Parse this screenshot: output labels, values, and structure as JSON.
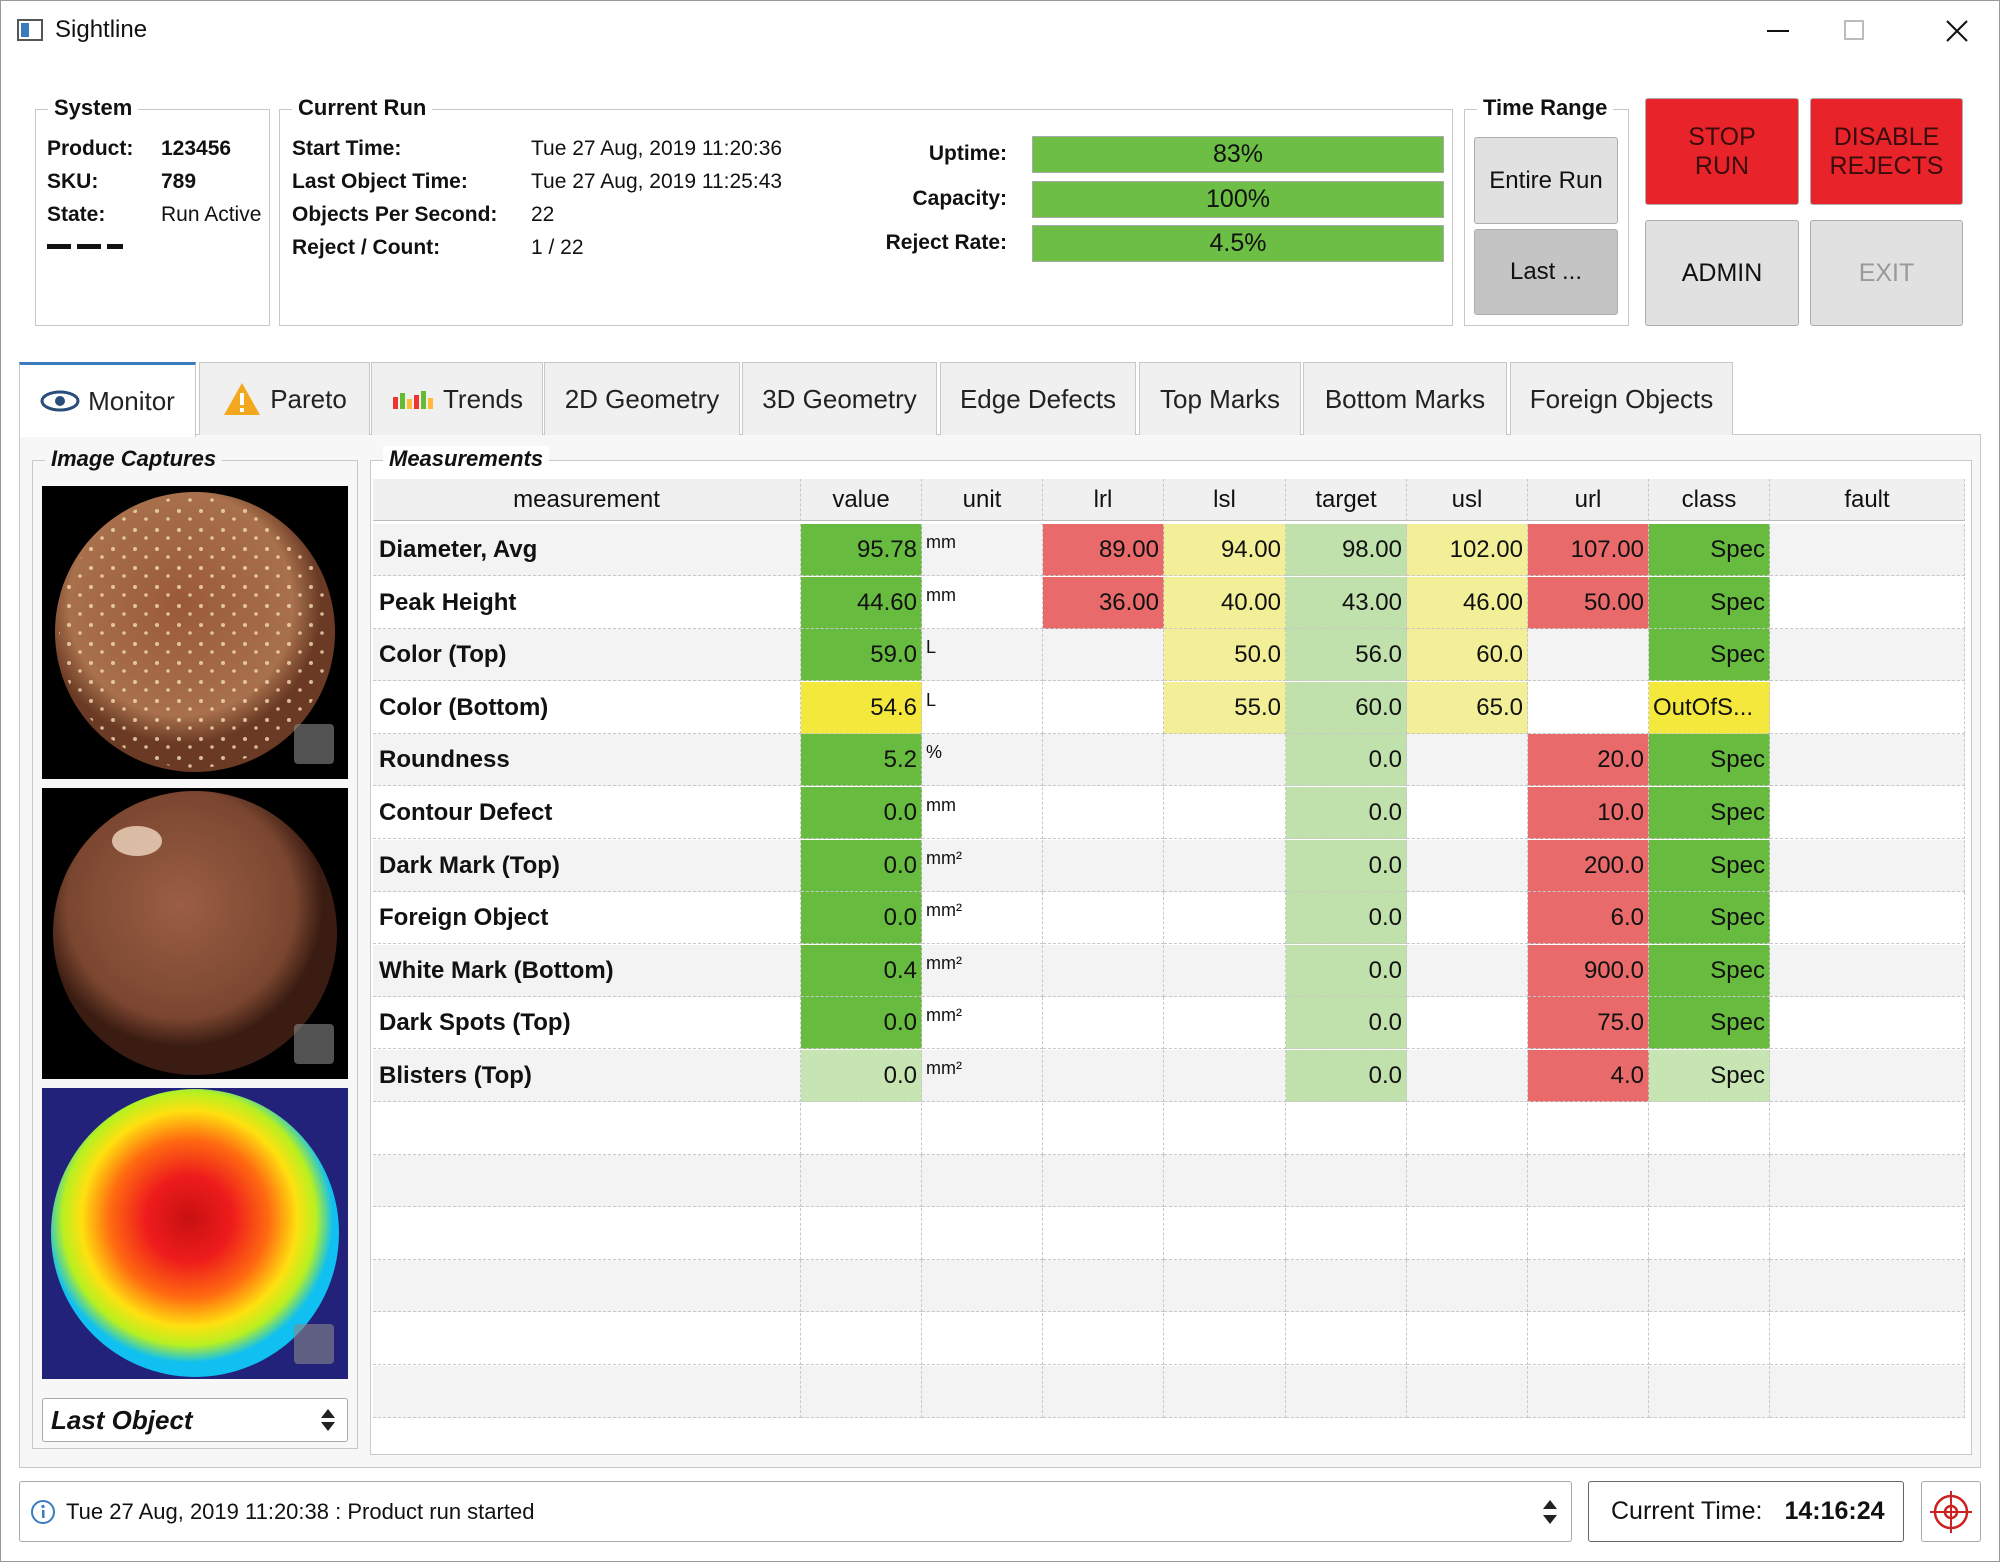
{
  "window": {
    "title": "Sightline"
  },
  "system": {
    "title": "System",
    "fields": [
      {
        "label": "Product:",
        "value": "123456"
      },
      {
        "label": "SKU:",
        "value": "789"
      },
      {
        "label": "State:",
        "value": "Run Active"
      }
    ]
  },
  "current_run": {
    "title": "Current Run",
    "fields": [
      {
        "label": "Start Time:",
        "value": "Tue 27 Aug, 2019 11:20:36"
      },
      {
        "label": "Last Object Time:",
        "value": "Tue 27 Aug, 2019 11:25:43"
      },
      {
        "label": "Objects Per Second:",
        "value": "22"
      },
      {
        "label": "Reject / Count:",
        "value": "1 / 22"
      }
    ],
    "metrics": [
      {
        "label": "Uptime:",
        "value": "83%"
      },
      {
        "label": "Capacity:",
        "value": "100%"
      },
      {
        "label": "Reject Rate:",
        "value": "4.5%"
      }
    ]
  },
  "time_range": {
    "title": "Time Range",
    "buttons": [
      "Entire Run",
      "Last ..."
    ]
  },
  "controls": {
    "buttons": [
      "STOP RUN",
      "DISABLE REJECTS",
      "ADMIN",
      "EXIT"
    ]
  },
  "tabs": [
    "Monitor",
    "Pareto",
    "Trends",
    "2D Geometry",
    "3D Geometry",
    "Edge Defects",
    "Top Marks",
    "Bottom Marks",
    "Foreign Objects"
  ],
  "image_captures": {
    "title": "Image Captures",
    "selector": "Last Object"
  },
  "measurements": {
    "title": "Measurements",
    "columns": [
      "measurement",
      "value",
      "unit",
      "lrl",
      "lsl",
      "target",
      "usl",
      "url",
      "class",
      "fault"
    ],
    "rows": [
      {
        "cells": [
          "Diameter, Avg",
          "95.78",
          "mm",
          "89.00",
          "94.00",
          "98.00",
          "102.00",
          "107.00",
          "Spec",
          null
        ],
        "colors": [
          null,
          "#67bb3f",
          null,
          "#e86a6a",
          "#f3ef98",
          "#c0e1ac",
          "#f3ef98",
          "#e86a6a",
          "#67bb3f",
          null
        ]
      },
      {
        "cells": [
          "Peak Height",
          "44.60",
          "mm",
          "36.00",
          "40.00",
          "43.00",
          "46.00",
          "50.00",
          "Spec",
          null
        ],
        "colors": [
          null,
          "#67bb3f",
          null,
          "#e86a6a",
          "#f3ef98",
          "#c0e1ac",
          "#f3ef98",
          "#e86a6a",
          "#67bb3f",
          null
        ]
      },
      {
        "cells": [
          "Color (Top)",
          "59.0",
          "L",
          null,
          "50.0",
          "56.0",
          "60.0",
          null,
          "Spec",
          null
        ],
        "colors": [
          null,
          "#67bb3f",
          null,
          null,
          "#f3ef98",
          "#c0e1ac",
          "#f3ef98",
          null,
          "#67bb3f",
          null
        ]
      },
      {
        "cells": [
          "Color (Bottom)",
          "54.6",
          "L",
          null,
          "55.0",
          "60.0",
          "65.0",
          null,
          "OutOfS...",
          null
        ],
        "colors": [
          null,
          "#f5e83c",
          null,
          null,
          "#f3ef98",
          "#c0e1ac",
          "#f3ef98",
          null,
          "#f5e83c",
          null
        ]
      },
      {
        "cells": [
          "Roundness",
          "5.2",
          "%",
          null,
          null,
          "0.0",
          null,
          "20.0",
          "Spec",
          null
        ],
        "colors": [
          null,
          "#67bb3f",
          null,
          null,
          null,
          "#c0e1ac",
          null,
          "#e86a6a",
          "#67bb3f",
          null
        ]
      },
      {
        "cells": [
          "Contour Defect",
          "0.0",
          "mm",
          null,
          null,
          "0.0",
          null,
          "10.0",
          "Spec",
          null
        ],
        "colors": [
          null,
          "#67bb3f",
          null,
          null,
          null,
          "#c0e1ac",
          null,
          "#e86a6a",
          "#67bb3f",
          null
        ]
      },
      {
        "cells": [
          "Dark Mark (Top)",
          "0.0",
          "mm²",
          null,
          null,
          "0.0",
          null,
          "200.0",
          "Spec",
          null
        ],
        "colors": [
          null,
          "#67bb3f",
          null,
          null,
          null,
          "#c0e1ac",
          null,
          "#e86a6a",
          "#67bb3f",
          null
        ]
      },
      {
        "cells": [
          "Foreign Object",
          "0.0",
          "mm²",
          null,
          null,
          "0.0",
          null,
          "6.0",
          "Spec",
          null
        ],
        "colors": [
          null,
          "#67bb3f",
          null,
          null,
          null,
          "#c0e1ac",
          null,
          "#e86a6a",
          "#67bb3f",
          null
        ]
      },
      {
        "cells": [
          "White Mark (Bottom)",
          "0.4",
          "mm²",
          null,
          null,
          "0.0",
          null,
          "900.0",
          "Spec",
          null
        ],
        "colors": [
          null,
          "#67bb3f",
          null,
          null,
          null,
          "#c0e1ac",
          null,
          "#e86a6a",
          "#67bb3f",
          null
        ]
      },
      {
        "cells": [
          "Dark Spots (Top)",
          "0.0",
          "mm²",
          null,
          null,
          "0.0",
          null,
          "75.0",
          "Spec",
          null
        ],
        "colors": [
          null,
          "#67bb3f",
          null,
          null,
          null,
          "#c0e1ac",
          null,
          "#e86a6a",
          "#67bb3f",
          null
        ]
      },
      {
        "cells": [
          "Blisters (Top)",
          "0.0",
          "mm²",
          null,
          null,
          "0.0",
          null,
          "4.0",
          "Spec",
          null
        ],
        "colors": [
          null,
          "#c6e5b3",
          null,
          null,
          null,
          "#c0e1ac",
          null,
          "#e86a6a",
          "#c6e5b3",
          null
        ]
      }
    ]
  },
  "status": {
    "message": "Tue 27 Aug, 2019 11:20:38 : Product run started",
    "time_label": "Current Time:",
    "time": "14:16:24"
  }
}
